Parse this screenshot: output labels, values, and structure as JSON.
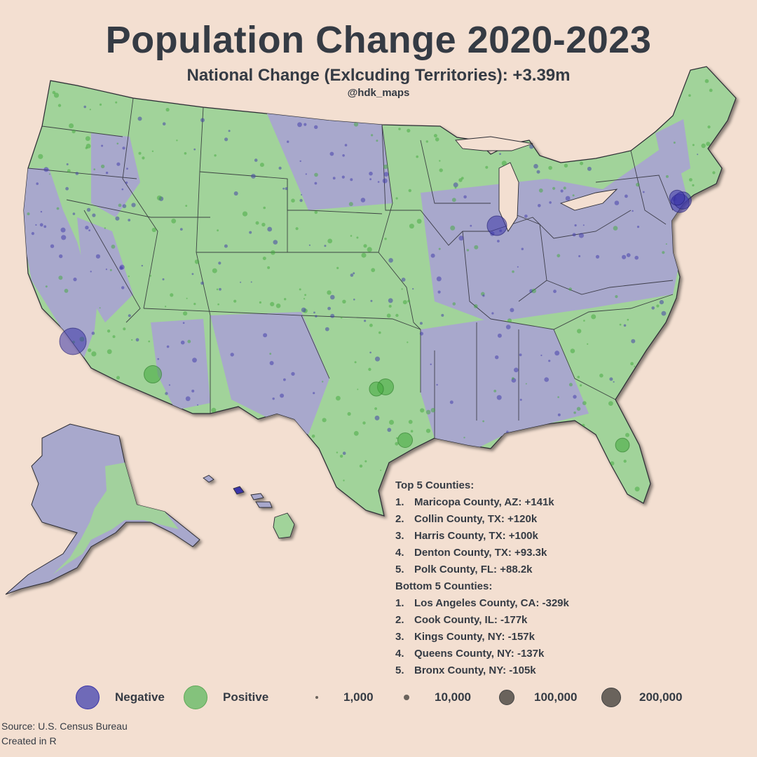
{
  "title": "Population Change 2020-2023",
  "subtitle": "National Change (Exlcuding Territories): +3.39m",
  "credit": "@hdk_maps",
  "colors": {
    "background": "#f3dfd1",
    "negative": "#a8a8cc",
    "positive": "#a1d39a",
    "negative_dot": "#3b35a8",
    "positive_dot": "#3fa83a",
    "border": "#2b2b33"
  },
  "top_counties": {
    "heading": "Top 5 Counties:",
    "items": [
      {
        "rank": "1.",
        "text": "Maricopa County, AZ: +141k"
      },
      {
        "rank": "2.",
        "text": "Collin County, TX: +120k"
      },
      {
        "rank": "3.",
        "text": "Harris County, TX: +100k"
      },
      {
        "rank": "4.",
        "text": "Denton County, TX: +93.3k"
      },
      {
        "rank": "5.",
        "text": "Polk County, FL: +88.2k"
      }
    ]
  },
  "bottom_counties": {
    "heading": "Bottom 5 Counties:",
    "items": [
      {
        "rank": "1.",
        "text": "Los Angeles County, CA: -329k"
      },
      {
        "rank": "2.",
        "text": "Cook County, IL: -177k"
      },
      {
        "rank": "3.",
        "text": "Kings County, NY: -157k"
      },
      {
        "rank": "4.",
        "text": "Queens County, NY: -137k"
      },
      {
        "rank": "5.",
        "text": "Bronx County, NY: -105k"
      }
    ]
  },
  "legend": {
    "negative": "Negative",
    "positive": "Positive",
    "sizes": [
      "1,000",
      "10,000",
      "100,000",
      "200,000"
    ]
  },
  "source": {
    "line1": "Source: U.S. Census Bureau",
    "line2": "Created in R"
  },
  "map_bubbles": [
    {
      "place": "Los Angeles County, CA",
      "change": -329
    },
    {
      "place": "Cook County, IL",
      "change": -177
    },
    {
      "place": "Kings County, NY",
      "change": -157
    },
    {
      "place": "Queens County, NY",
      "change": -137
    },
    {
      "place": "Bronx County, NY",
      "change": -105
    },
    {
      "place": "Maricopa County, AZ",
      "change": 141
    },
    {
      "place": "Collin County, TX",
      "change": 120
    },
    {
      "place": "Harris County, TX",
      "change": 100
    },
    {
      "place": "Denton County, TX",
      "change": 93.3
    },
    {
      "place": "Polk County, FL",
      "change": 88.2
    }
  ]
}
